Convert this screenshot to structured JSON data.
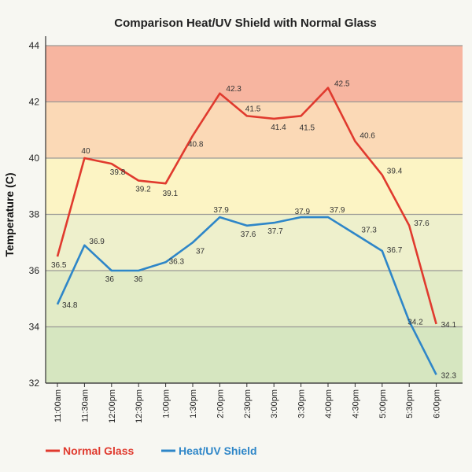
{
  "chart_data": {
    "type": "line",
    "title": "Comparison Heat/UV Shield with Normal Glass",
    "xlabel": "",
    "ylabel": "Temperature (C)",
    "ylim": [
      32,
      44
    ],
    "yticks": [
      32,
      34,
      36,
      38,
      40,
      42,
      44
    ],
    "grid": true,
    "legend_position": "bottom-left",
    "categories": [
      "11:00am",
      "11:30am",
      "12:00pm",
      "12:30pm",
      "1:00pm",
      "1:30pm",
      "2:00pm",
      "2:30pm",
      "3:00pm",
      "3:30pm",
      "4:00pm",
      "4:30pm",
      "5:00pm",
      "5:30pm",
      "6:00pm"
    ],
    "bands": [
      {
        "from": 42,
        "to": 44,
        "color": "#f7b5a0"
      },
      {
        "from": 40,
        "to": 42,
        "color": "#fbd9b6"
      },
      {
        "from": 38,
        "to": 40,
        "color": "#fcf4c4"
      },
      {
        "from": 36,
        "to": 38,
        "color": "#eef0cc"
      },
      {
        "from": 34,
        "to": 36,
        "color": "#e2ebc6"
      },
      {
        "from": 32,
        "to": 34,
        "color": "#d6e6c0"
      }
    ],
    "series": [
      {
        "name": "Normal Glass",
        "color": "#e03a2e",
        "values": [
          36.5,
          40,
          39.8,
          39.2,
          39.1,
          40.8,
          42.3,
          41.5,
          41.4,
          41.5,
          42.5,
          40.6,
          39.4,
          37.6,
          34.1
        ]
      },
      {
        "name": "Heat/UV Shield",
        "color": "#2e86c8",
        "values": [
          34.8,
          36.9,
          36,
          36,
          36.3,
          37,
          37.9,
          37.6,
          37.7,
          37.9,
          37.9,
          37.3,
          36.7,
          34.2,
          32.3
        ]
      }
    ]
  }
}
